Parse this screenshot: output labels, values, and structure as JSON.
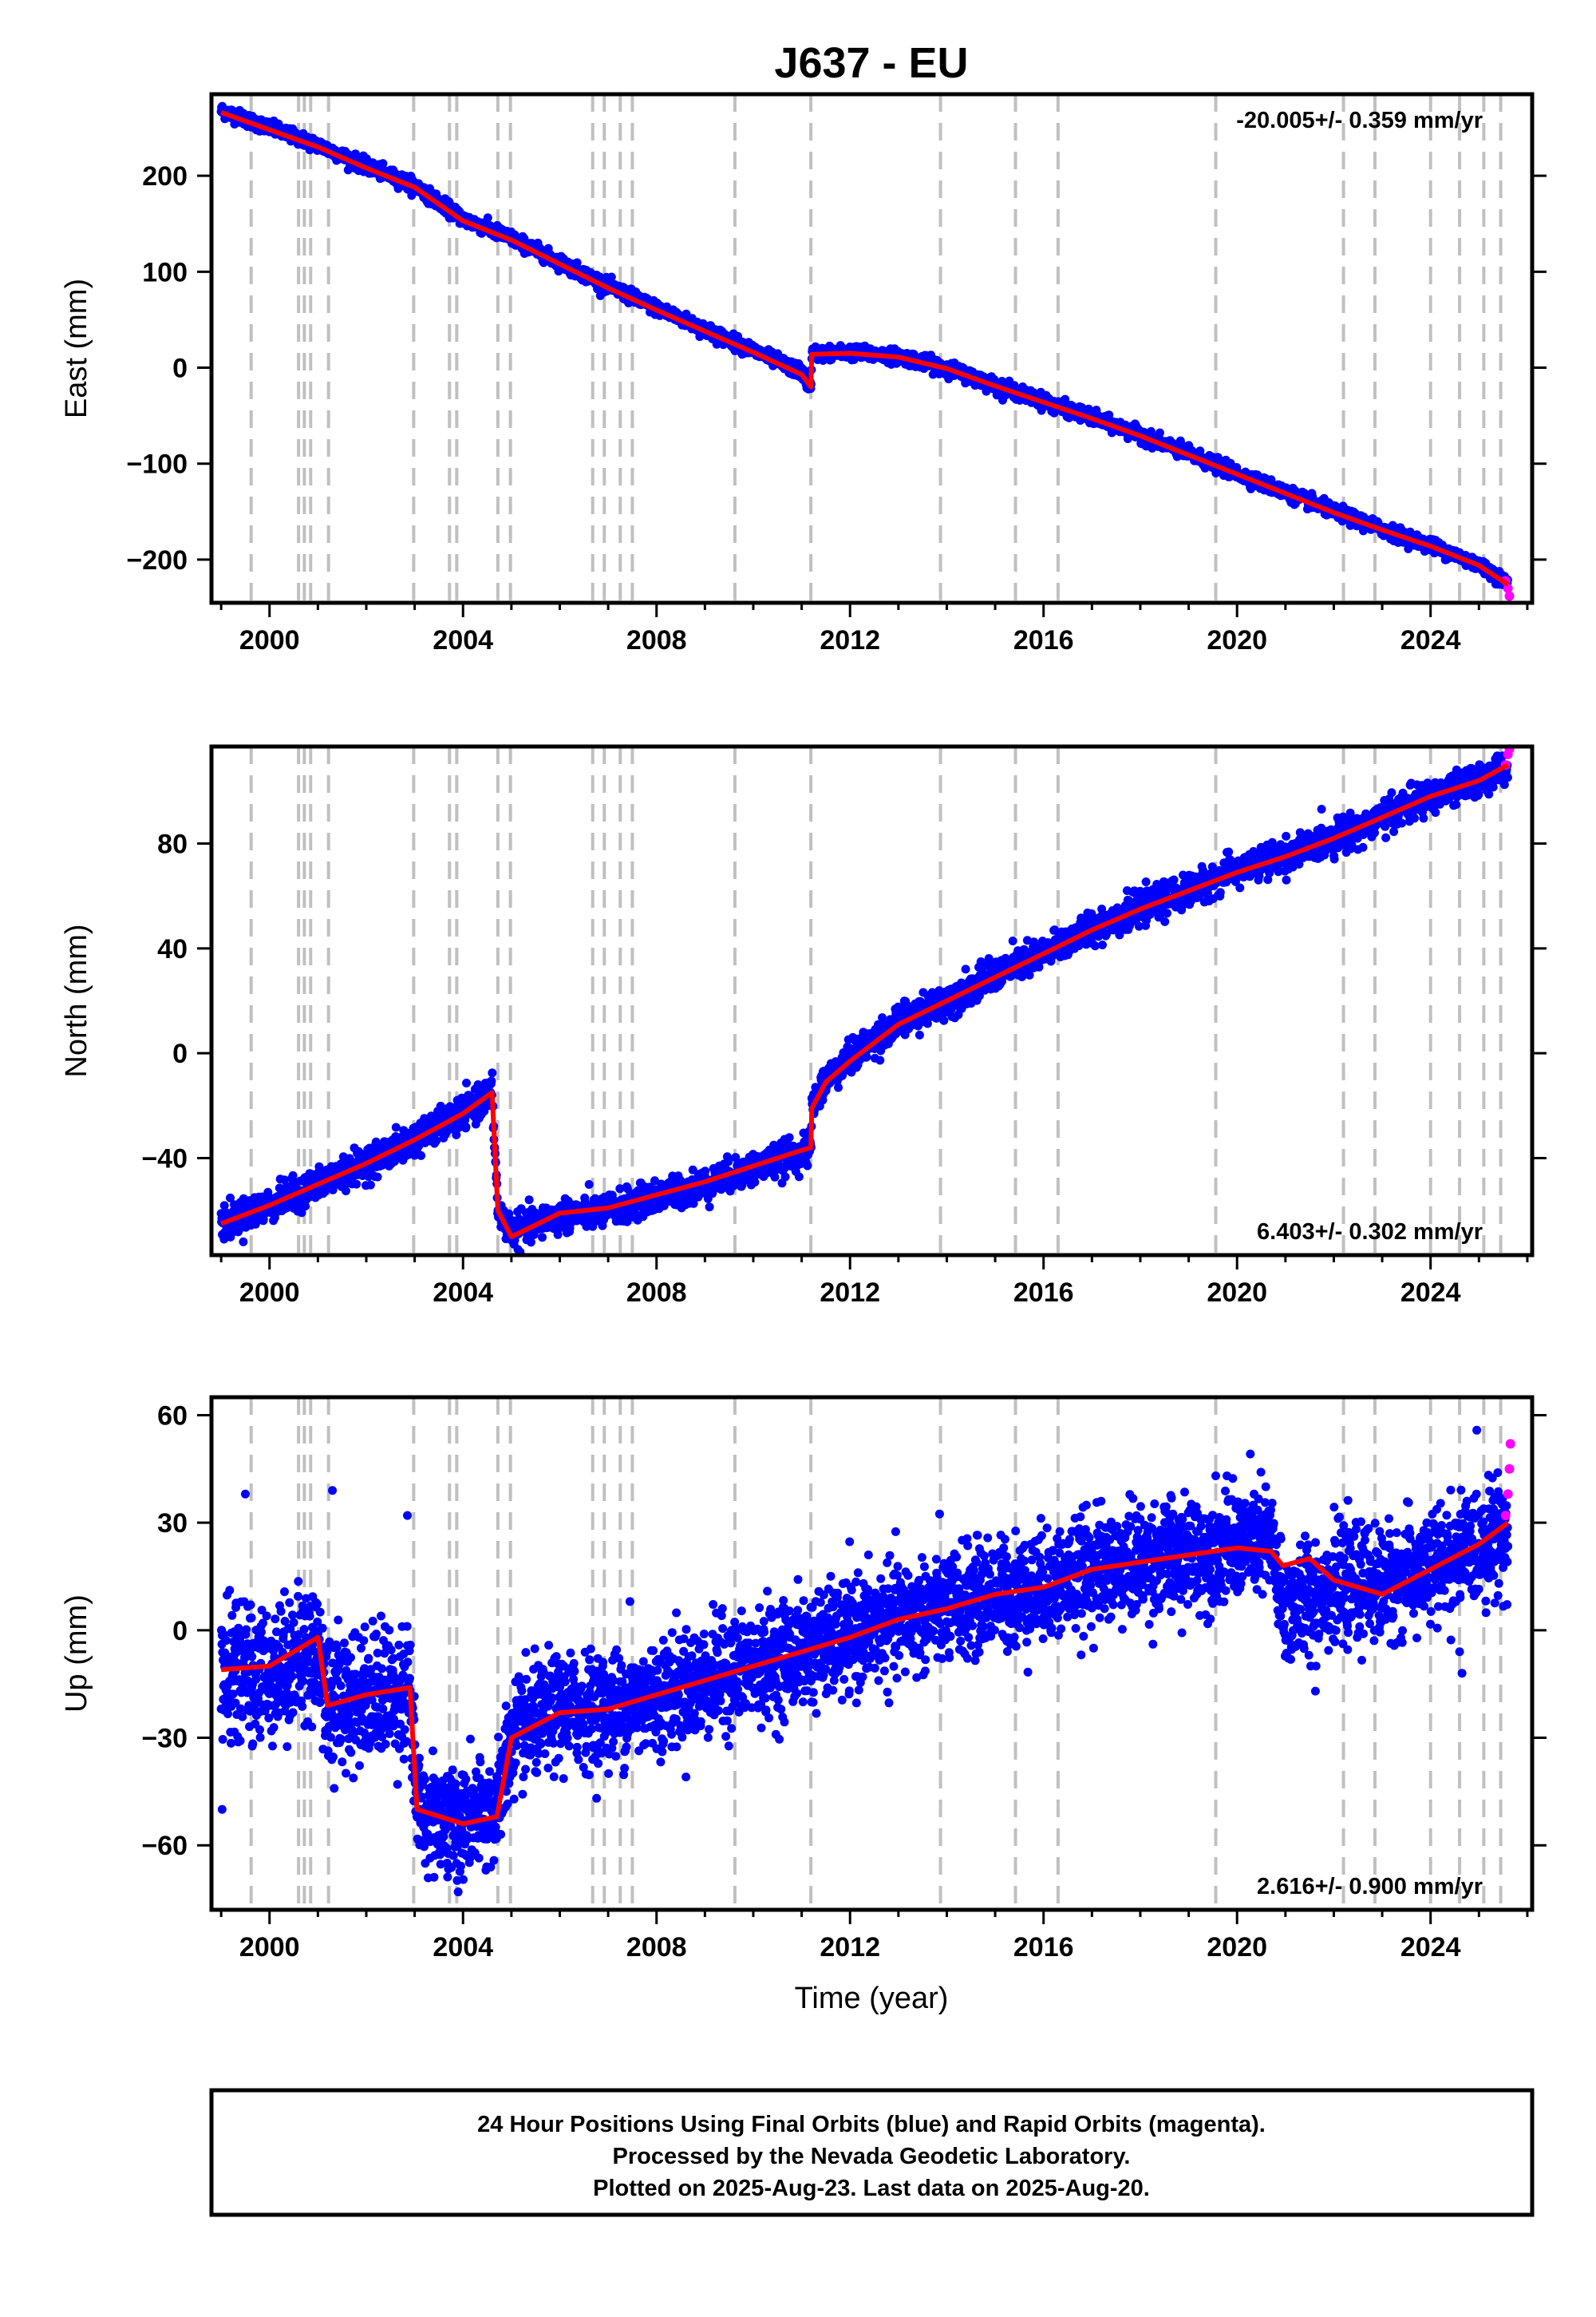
{
  "title": "J637 - EU",
  "xlabel": "Time (year)",
  "footer": {
    "lines": [
      "24 Hour Positions Using Final Orbits (blue) and Rapid Orbits (magenta).",
      "Processed by the Nevada Geodetic Laboratory.",
      "Plotted on 2025-Aug-23. Last data on 2025-Aug-20."
    ]
  },
  "colors": {
    "final_orbits": "#0000ff",
    "rapid_orbits": "#ff00ff",
    "model": "#ff0000",
    "steps": "#c0c0c0"
  },
  "chart_data": [
    {
      "type": "scatter",
      "panel": "east",
      "ylabel": "East (mm)",
      "rate_label": "-20.005+/- 0.359 mm/yr",
      "rate_position": "top-right",
      "xlim": [
        1998.8,
        2026.1
      ],
      "ylim": [
        -245,
        285
      ],
      "xticks": [
        2000,
        2004,
        2008,
        2012,
        2016,
        2020,
        2024
      ],
      "yticks": [
        -200,
        -100,
        0,
        100,
        200
      ],
      "ytick_labels": [
        "−200",
        "−100",
        "0",
        "100",
        "200"
      ],
      "series": [
        {
          "name": "Final Orbits",
          "color": "#0000ff",
          "x": [
            1999.0,
            2000.0,
            2001.0,
            2002.0,
            2003.0,
            2004.0,
            2005.0,
            2006.0,
            2007.0,
            2008.0,
            2009.0,
            2010.0,
            2011.0,
            2011.19,
            2011.21,
            2012.0,
            2013.0,
            2014.0,
            2015.0,
            2016.0,
            2017.0,
            2018.0,
            2019.0,
            2020.0,
            2021.0,
            2022.0,
            2023.0,
            2024.0,
            2025.0,
            2025.6
          ],
          "y": [
            268,
            250,
            232,
            210,
            190,
            155,
            135,
            110,
            85,
            62,
            40,
            18,
            -5,
            -22,
            15,
            16,
            12,
            0,
            -18,
            -35,
            -52,
            -70,
            -90,
            -110,
            -130,
            -150,
            -168,
            -185,
            -205,
            -225
          ]
        },
        {
          "name": "Rapid Orbits",
          "color": "#ff00ff",
          "x": [
            2025.55,
            2025.6,
            2025.63
          ],
          "y": [
            -222,
            -230,
            -238
          ]
        }
      ],
      "model_line": {
        "color": "#ff0000",
        "x": [
          1999.0,
          2000.0,
          2001.0,
          2002.0,
          2003.0,
          2004.0,
          2005.0,
          2006.0,
          2007.0,
          2008.0,
          2009.0,
          2010.0,
          2011.0,
          2011.19,
          2011.21,
          2012.0,
          2013.0,
          2014.0,
          2015.0,
          2016.0,
          2017.0,
          2018.0,
          2019.0,
          2020.0,
          2021.0,
          2022.0,
          2023.0,
          2024.0,
          2025.0,
          2025.6
        ],
        "y": [
          266,
          248,
          230,
          208,
          188,
          153,
          133,
          108,
          83,
          60,
          38,
          16,
          -7,
          -20,
          14,
          15,
          11,
          -1,
          -19,
          -36,
          -53,
          -71,
          -91,
          -111,
          -131,
          -151,
          -169,
          -186,
          -206,
          -226
        ]
      }
    },
    {
      "type": "scatter",
      "panel": "north",
      "ylabel": "North (mm)",
      "rate_label": "6.403+/- 0.302 mm/yr",
      "rate_position": "bottom-right",
      "xlim": [
        1998.8,
        2026.1
      ],
      "ylim": [
        -77,
        117
      ],
      "xticks": [
        2000,
        2004,
        2008,
        2012,
        2016,
        2020,
        2024
      ],
      "yticks": [
        -40,
        0,
        40,
        80
      ],
      "ytick_labels": [
        "−40",
        "0",
        "40",
        "80"
      ],
      "series": [
        {
          "name": "Final Orbits",
          "color": "#0000ff",
          "x": [
            1999.0,
            2000.0,
            2001.0,
            2002.0,
            2003.0,
            2004.0,
            2004.6,
            2004.72,
            2005.0,
            2006.0,
            2007.0,
            2008.0,
            2009.0,
            2010.0,
            2011.0,
            2011.19,
            2011.21,
            2011.5,
            2012.0,
            2013.0,
            2014.0,
            2015.0,
            2016.0,
            2017.0,
            2018.0,
            2019.0,
            2020.0,
            2021.0,
            2022.0,
            2023.0,
            2024.0,
            2025.0,
            2025.6
          ],
          "y": [
            -65,
            -58,
            -50,
            -42,
            -33,
            -23,
            -15,
            -60,
            -68,
            -62,
            -60,
            -55,
            -50,
            -44,
            -38,
            -37,
            -20,
            -10,
            -2,
            12,
            20,
            30,
            38,
            48,
            55,
            62,
            70,
            75,
            82,
            90,
            98,
            104,
            110
          ]
        },
        {
          "name": "Rapid Orbits",
          "color": "#ff00ff",
          "x": [
            2025.55,
            2025.6,
            2025.63
          ],
          "y": [
            110,
            114,
            116
          ]
        }
      ],
      "model_line": {
        "color": "#ff0000",
        "x": [
          1999.0,
          2000.0,
          2001.0,
          2002.0,
          2003.0,
          2004.0,
          2004.6,
          2004.72,
          2005.0,
          2006.0,
          2007.0,
          2008.0,
          2009.0,
          2010.0,
          2011.0,
          2011.19,
          2011.21,
          2011.5,
          2012.0,
          2013.0,
          2014.0,
          2015.0,
          2016.0,
          2017.0,
          2018.0,
          2019.0,
          2020.0,
          2021.0,
          2022.0,
          2023.0,
          2024.0,
          2025.0,
          2025.6
        ],
        "y": [
          -65,
          -58,
          -50,
          -42,
          -33,
          -23,
          -15,
          -60,
          -70,
          -61,
          -59,
          -54,
          -49,
          -43,
          -37,
          -36,
          -21,
          -11,
          -3,
          11,
          20,
          29,
          38,
          47,
          55,
          62,
          69,
          75,
          82,
          90,
          98,
          104,
          110
        ]
      }
    },
    {
      "type": "scatter",
      "panel": "up",
      "ylabel": "Up (mm)",
      "rate_label": "2.616+/- 0.900 mm/yr",
      "rate_position": "bottom-right",
      "xlim": [
        1998.8,
        2026.1
      ],
      "ylim": [
        -78,
        65
      ],
      "xticks": [
        2000,
        2004,
        2008,
        2012,
        2016,
        2020,
        2024
      ],
      "xtick_labels": [
        "2000",
        "2004",
        "2008",
        "2012",
        "2016",
        "2020",
        "2024"
      ],
      "yticks": [
        -60,
        -30,
        0,
        30,
        60
      ],
      "ytick_labels": [
        "−60",
        "−30",
        "0",
        "30",
        "60"
      ],
      "series": [
        {
          "name": "Final Orbits",
          "color": "#0000ff",
          "x": [
            1999.0,
            2000.0,
            2001.0,
            2001.2,
            2002.0,
            2002.9,
            2003.05,
            2004.0,
            2004.7,
            2005.0,
            2006.0,
            2007.0,
            2008.0,
            2009.0,
            2010.0,
            2011.0,
            2012.0,
            2013.0,
            2014.0,
            2015.0,
            2016.0,
            2017.0,
            2018.0,
            2019.0,
            2020.0,
            2020.7,
            2020.95,
            2021.5,
            2022.0,
            2023.0,
            2024.0,
            2025.0,
            2025.6
          ],
          "y": [
            -12,
            -12,
            -5,
            -20,
            -18,
            -16,
            -50,
            -54,
            -50,
            -30,
            -22,
            -22,
            -18,
            -14,
            -10,
            -6,
            -2,
            3,
            6,
            10,
            12,
            17,
            19,
            21,
            24,
            25,
            5,
            10,
            12,
            13,
            17,
            24,
            28
          ]
        },
        {
          "name": "Rapid Orbits",
          "color": "#ff00ff",
          "x": [
            2025.55,
            2025.6,
            2025.63,
            2025.65
          ],
          "y": [
            32,
            38,
            45,
            52
          ]
        }
      ],
      "model_line": {
        "color": "#ff0000",
        "x": [
          1999.0,
          2000.0,
          2001.0,
          2001.2,
          2002.0,
          2002.9,
          2003.05,
          2004.0,
          2004.7,
          2005.0,
          2006.0,
          2007.0,
          2008.0,
          2009.0,
          2010.0,
          2011.0,
          2012.0,
          2013.0,
          2014.0,
          2015.0,
          2016.0,
          2017.0,
          2018.0,
          2019.0,
          2020.0,
          2020.7,
          2020.95,
          2021.5,
          2022.0,
          2023.0,
          2024.0,
          2025.0,
          2025.6
        ],
        "y": [
          -11,
          -10,
          -2,
          -21,
          -18,
          -16,
          -50,
          -54,
          -52,
          -30,
          -23,
          -22,
          -18,
          -14,
          -10,
          -6,
          -2,
          3,
          6,
          10,
          12,
          17,
          19,
          21,
          23,
          22,
          18,
          20,
          14,
          10,
          17,
          24,
          30
        ]
      }
    }
  ],
  "step_epochs": [
    1999.62,
    2000.6,
    2000.72,
    2000.85,
    2001.22,
    2002.98,
    2003.72,
    2003.87,
    2004.72,
    2004.98,
    2006.68,
    2006.92,
    2007.25,
    2007.5,
    2009.62,
    2011.19,
    2013.87,
    2015.42,
    2016.3,
    2019.56,
    2022.2,
    2022.85,
    2024.0,
    2024.6,
    2025.1,
    2025.45
  ]
}
